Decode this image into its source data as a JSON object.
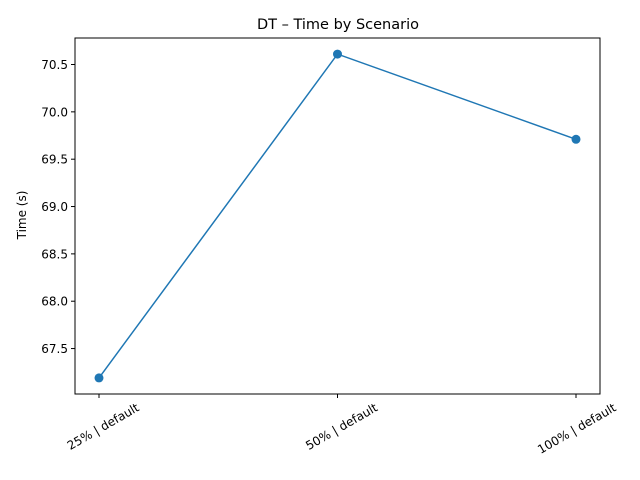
{
  "chart_data": {
    "type": "line",
    "title": "DT – Time by Scenario",
    "xlabel": "",
    "ylabel": "Time (s)",
    "categories": [
      "25% | default",
      "50% | default",
      "100% | default"
    ],
    "series": [
      {
        "values": [
          67.19,
          70.61,
          69.71
        ],
        "color": "#1f77b4",
        "marker": "circle"
      }
    ],
    "ylim": [
      67.02,
      70.78
    ],
    "yticks": [
      67.5,
      68.0,
      68.5,
      69.0,
      69.5,
      70.0,
      70.5
    ],
    "ytick_labels": [
      "67.5",
      "68.0",
      "68.5",
      "69.0",
      "69.5",
      "70.0",
      "70.5"
    ],
    "grid": false,
    "legend": "none"
  }
}
